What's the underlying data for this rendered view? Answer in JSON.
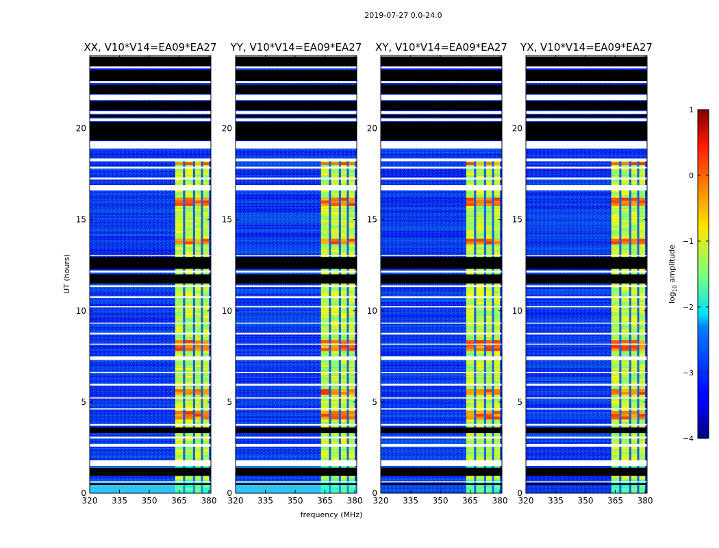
{
  "chart_data": {
    "type": "heatmap",
    "suptitle": "2019-07-27 0.0-24.0",
    "xlabel": "frequency (MHz)",
    "ylabel": "UT (hours)",
    "xlim": [
      320,
      381
    ],
    "ylim": [
      0,
      24
    ],
    "xticks": [
      320,
      335,
      350,
      365,
      380
    ],
    "yticks": [
      0,
      5,
      10,
      15,
      20
    ],
    "panels": [
      {
        "title": "XX, V10*V14=EA09*EA27",
        "low_band_bright": true
      },
      {
        "title": "YY, V10*V14=EA09*EA27",
        "low_band_bright": true
      },
      {
        "title": "XY, V10*V14=EA09*EA27",
        "low_band_bright": false
      },
      {
        "title": "YX, V10*V14=EA09*EA27",
        "low_band_bright": false
      }
    ],
    "colorbar": {
      "label": "log10 amplitude",
      "label_main": "log",
      "label_sub": "10",
      "label_tail": " amplitude",
      "ticks": [
        1,
        0,
        -1,
        -2,
        -3,
        -4
      ],
      "tick_labels": [
        "1",
        "0",
        "−1",
        "−2",
        "−3",
        "−4"
      ],
      "range": [
        -4,
        1
      ],
      "colormap": "jet"
    },
    "signal_band_mhz": [
      363,
      380
    ],
    "signal_channels_mhz": [
      [
        363,
        367
      ],
      [
        368,
        372
      ],
      [
        373,
        376
      ],
      [
        377,
        380
      ]
    ],
    "flagged_black_ut": [
      [
        0.45,
        0.55
      ],
      [
        0.95,
        1.4
      ],
      [
        20.6,
        20.75
      ],
      [
        21.0,
        21.5
      ],
      [
        21.9,
        22.4
      ],
      [
        22.6,
        23.2
      ],
      [
        23.4,
        23.95
      ],
      [
        19.35,
        20.35
      ],
      [
        12.3,
        12.95
      ],
      [
        11.5,
        12.0
      ],
      [
        3.3,
        3.6
      ]
    ],
    "flagged_white_ut": [
      [
        0.62,
        0.65
      ],
      [
        1.5,
        1.8
      ],
      [
        2.55,
        2.7
      ],
      [
        3.0,
        3.1
      ],
      [
        3.7,
        3.8
      ],
      [
        4.6,
        4.65
      ],
      [
        5.2,
        5.25
      ],
      [
        5.9,
        6.0
      ],
      [
        6.6,
        6.65
      ],
      [
        7.3,
        7.5
      ],
      [
        8.15,
        8.2
      ],
      [
        8.7,
        8.8
      ],
      [
        9.3,
        9.35
      ],
      [
        10.2,
        10.25
      ],
      [
        10.7,
        10.8
      ],
      [
        11.3,
        11.4
      ],
      [
        12.1,
        12.2
      ],
      [
        13.0,
        13.05
      ],
      [
        16.6,
        16.9
      ],
      [
        17.2,
        17.3
      ],
      [
        17.8,
        17.9
      ],
      [
        18.2,
        18.35
      ],
      [
        18.9,
        19.3
      ],
      [
        20.4,
        20.55
      ],
      [
        20.8,
        20.95
      ],
      [
        21.55,
        21.85
      ],
      [
        22.5,
        22.6
      ],
      [
        23.3,
        23.4
      ],
      [
        23.95,
        24.0
      ]
    ],
    "hot_ut": [
      [
        7.7,
        8.3
      ],
      [
        13.6,
        13.9
      ],
      [
        15.7,
        16.2
      ],
      [
        17.9,
        18.1
      ],
      [
        4.0,
        4.4
      ],
      [
        5.3,
        5.6
      ]
    ],
    "colors": {
      "background": "#ffffff",
      "flag": "#000000",
      "blank": "#ffffff"
    }
  }
}
